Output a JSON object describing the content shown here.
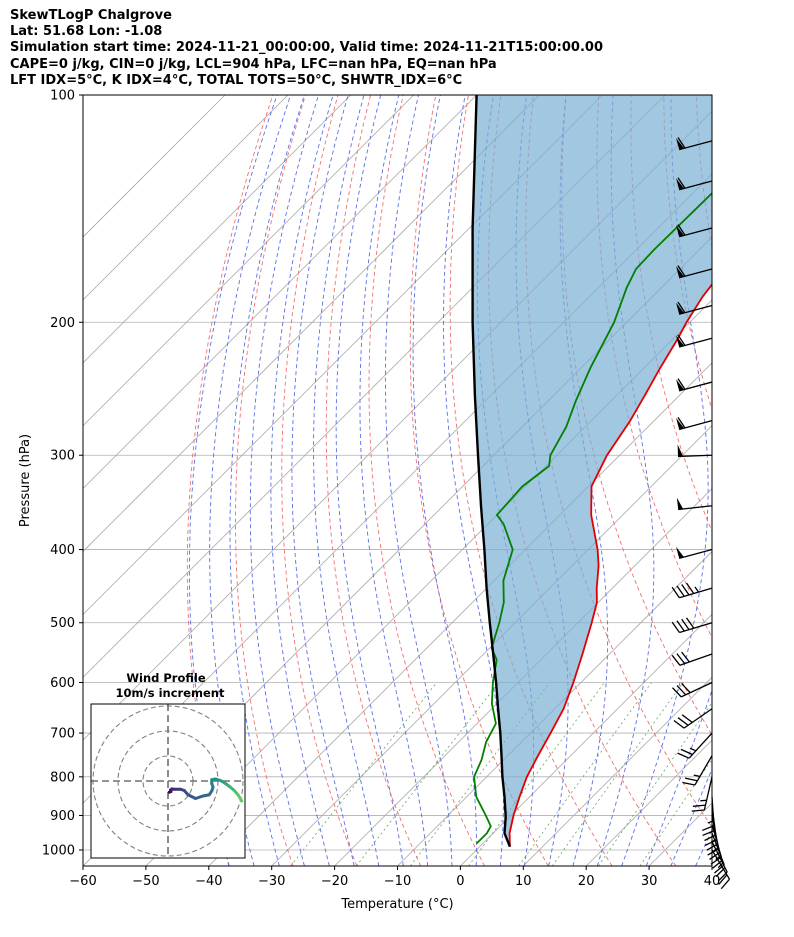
{
  "header": {
    "line1": "SkewTLogP Chalgrove",
    "line2": "Lat: 51.68   Lon: -1.08",
    "line3": "Simulation start time: 2024-11-21_00:00:00, Valid time: 2024-11-21T15:00:00.00",
    "line4": "CAPE=0 j/kg, CIN=0 j/kg, LCL=904 hPa, LFC=nan hPa, EQ=nan hPa",
    "line5": "LFT IDX=5°C, K IDX=4°C, TOTAL TOTS=50°C, SHWTR_IDX=6°C"
  },
  "chart_data": {
    "type": "line",
    "subtype": "skew-t log-p",
    "xlabel": "Temperature (°C)",
    "ylabel": "Pressure (hPa)",
    "xlim": [
      -60,
      40
    ],
    "ylim": [
      1050,
      100
    ],
    "y_scale": "log",
    "grid": true,
    "x_ticks": [
      -60,
      -50,
      -40,
      -30,
      -20,
      -10,
      0,
      10,
      20,
      30,
      40
    ],
    "x_tick_labels": [
      "−60",
      "−50",
      "−40",
      "−30",
      "−20",
      "−10",
      "0",
      "10",
      "20",
      "30",
      "40"
    ],
    "y_ticks": [
      1000,
      900,
      800,
      700,
      600,
      500,
      400,
      300,
      200,
      100
    ],
    "y_tick_labels": [
      "1000",
      "900",
      "800",
      "700",
      "600",
      "500",
      "400",
      "300",
      "200",
      "100"
    ],
    "series": [
      {
        "role": "temperature",
        "color": "#e00000",
        "points": [
          [
            990,
            4.8
          ],
          [
            950,
            2.6
          ],
          [
            900,
            0.4
          ],
          [
            850,
            -1.6
          ],
          [
            800,
            -3.6
          ],
          [
            750,
            -5.2
          ],
          [
            700,
            -6.8
          ],
          [
            650,
            -8.6
          ],
          [
            600,
            -11.2
          ],
          [
            550,
            -14.3
          ],
          [
            500,
            -17.8
          ],
          [
            470,
            -20.2
          ],
          [
            450,
            -22.5
          ],
          [
            420,
            -25.8
          ],
          [
            400,
            -28.5
          ],
          [
            360,
            -35.0
          ],
          [
            330,
            -39.5
          ],
          [
            300,
            -42.0
          ],
          [
            270,
            -43.8
          ],
          [
            250,
            -45.5
          ],
          [
            230,
            -47.4
          ],
          [
            210,
            -49.3
          ],
          [
            200,
            -50.5
          ],
          [
            185,
            -52.0
          ],
          [
            170,
            -53.0
          ],
          [
            150,
            -54.5
          ],
          [
            130,
            -56.0
          ],
          [
            110,
            -57.5
          ],
          [
            100,
            -58.5
          ]
        ]
      },
      {
        "role": "dewpoint",
        "color": "#008000",
        "points": [
          [
            980,
            -1.0
          ],
          [
            950,
            -1.0
          ],
          [
            930,
            -1.5
          ],
          [
            900,
            -4.0
          ],
          [
            850,
            -8.5
          ],
          [
            800,
            -12.0
          ],
          [
            760,
            -13.5
          ],
          [
            720,
            -15.6
          ],
          [
            680,
            -17.0
          ],
          [
            640,
            -20.8
          ],
          [
            600,
            -24.0
          ],
          [
            560,
            -27.0
          ],
          [
            540,
            -29.7
          ],
          [
            500,
            -32.5
          ],
          [
            470,
            -35.0
          ],
          [
            440,
            -38.5
          ],
          [
            400,
            -42.0
          ],
          [
            370,
            -47.5
          ],
          [
            360,
            -50.0
          ],
          [
            330,
            -50.5
          ],
          [
            310,
            -49.5
          ],
          [
            300,
            -51.0
          ],
          [
            275,
            -53.0
          ],
          [
            255,
            -55.5
          ],
          [
            230,
            -58.5
          ],
          [
            200,
            -62.0
          ],
          [
            180,
            -65.5
          ],
          [
            170,
            -67.0
          ],
          [
            160,
            -67.2
          ],
          [
            140,
            -67.0
          ],
          [
            120,
            -66.8
          ],
          [
            100,
            -66.6
          ]
        ]
      },
      {
        "role": "parcel",
        "color": "#000000",
        "points": [
          [
            990,
            4.8
          ],
          [
            950,
            1.8
          ],
          [
            904,
            -0.6
          ],
          [
            850,
            -4.0
          ],
          [
            800,
            -7.5
          ],
          [
            750,
            -11.0
          ],
          [
            700,
            -14.8
          ],
          [
            650,
            -19.0
          ],
          [
            600,
            -23.5
          ],
          [
            550,
            -28.5
          ],
          [
            500,
            -34.0
          ],
          [
            450,
            -40.0
          ],
          [
            400,
            -46.5
          ],
          [
            350,
            -54.0
          ],
          [
            300,
            -62.5
          ],
          [
            250,
            -72.5
          ],
          [
            200,
            -84.5
          ],
          [
            150,
            -99.5
          ],
          [
            100,
            -120.0
          ]
        ]
      }
    ],
    "wind_barbs": [
      {
        "p": 1000,
        "u": -6,
        "v": 10
      },
      {
        "p": 975,
        "u": -6,
        "v": 12
      },
      {
        "p": 950,
        "u": -5,
        "v": 13
      },
      {
        "p": 925,
        "u": -4,
        "v": 14
      },
      {
        "p": 900,
        "u": -3,
        "v": 15
      },
      {
        "p": 875,
        "u": -2,
        "v": 15
      },
      {
        "p": 850,
        "u": -1,
        "v": 15
      },
      {
        "p": 800,
        "u": 3,
        "v": 13
      },
      {
        "p": 750,
        "u": 7,
        "v": 12
      },
      {
        "p": 700,
        "u": 10,
        "v": 11
      },
      {
        "p": 650,
        "u": 13,
        "v": 9
      },
      {
        "p": 600,
        "u": 15,
        "v": 7
      },
      {
        "p": 550,
        "u": 17,
        "v": 6
      },
      {
        "p": 500,
        "u": 20,
        "v": 6
      },
      {
        "p": 450,
        "u": 24,
        "v": 7
      },
      {
        "p": 400,
        "u": 26,
        "v": 7
      },
      {
        "p": 350,
        "u": 27,
        "v": 3
      },
      {
        "p": 300,
        "u": 28,
        "v": 1
      },
      {
        "p": 270,
        "u": 30,
        "v": 8
      },
      {
        "p": 240,
        "u": 30,
        "v": 8
      },
      {
        "p": 210,
        "u": 30,
        "v": 8
      },
      {
        "p": 190,
        "u": 30,
        "v": 8
      },
      {
        "p": 170,
        "u": 30,
        "v": 8
      },
      {
        "p": 150,
        "u": 30,
        "v": 8
      },
      {
        "p": 130,
        "u": 30,
        "v": 8
      },
      {
        "p": 115,
        "u": 30,
        "v": 8
      }
    ],
    "hodograph": {
      "title": "Wind Profile",
      "subtitle": "10m/s increment",
      "ring_step_ms": 10,
      "rings": 3,
      "points": [
        [
          0.5,
          -4.5
        ],
        [
          1.2,
          -4.2
        ],
        [
          1.0,
          -3.6
        ],
        [
          1.5,
          -3.2
        ],
        [
          2.5,
          -3.3
        ],
        [
          5.0,
          -3.3
        ],
        [
          6.5,
          -3.8
        ],
        [
          8.0,
          -5.5
        ],
        [
          11.0,
          -7.0
        ],
        [
          14.0,
          -6.0
        ],
        [
          16.5,
          -5.5
        ],
        [
          17.5,
          -4.0
        ],
        [
          18.0,
          -2.5
        ],
        [
          17.5,
          -1.0
        ],
        [
          17.5,
          0.5
        ],
        [
          19.0,
          0.8
        ],
        [
          21.0,
          0.2
        ],
        [
          23.0,
          -1.0
        ],
        [
          25.0,
          -2.5
        ],
        [
          26.5,
          -3.8
        ],
        [
          28.0,
          -5.5
        ],
        [
          29.5,
          -8.0
        ]
      ]
    }
  }
}
